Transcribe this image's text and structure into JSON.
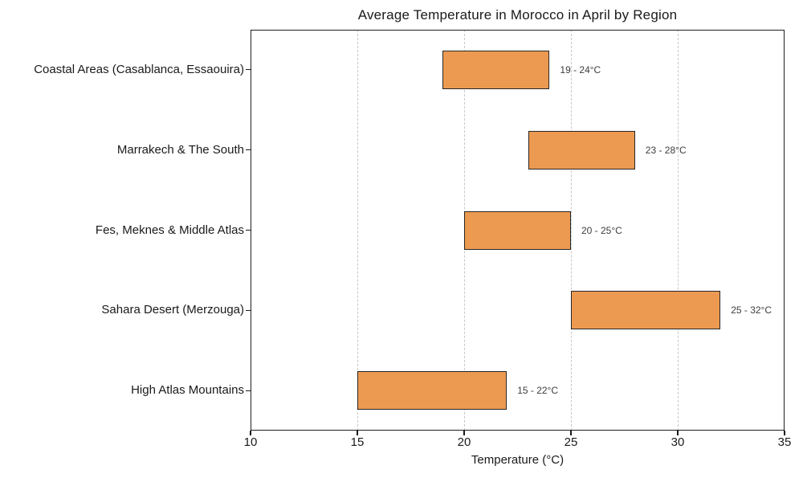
{
  "chart_data": {
    "type": "bar",
    "orientation": "horizontal",
    "title": "Average Temperature in Morocco in April by Region",
    "xlabel": "Temperature (°C)",
    "ylabel": "",
    "xlim": [
      10,
      35
    ],
    "xticks": [
      10,
      15,
      20,
      25,
      30,
      35
    ],
    "grid": "vertical-dashed",
    "legend": "none",
    "categories": [
      "Coastal Areas (Casablanca, Essaouira)",
      "Marrakech & The South",
      "Fes, Meknes & Middle Atlas",
      "Sahara Desert (Merzouga)",
      "High Atlas Mountains"
    ],
    "series": [
      {
        "name": "temperature-range-min",
        "values": [
          19,
          23,
          20,
          25,
          15
        ]
      },
      {
        "name": "temperature-range-max",
        "values": [
          24,
          28,
          25,
          32,
          22
        ]
      }
    ],
    "annotations": [
      "19 - 24°C",
      "23 - 28°C",
      "20 - 25°C",
      "25 - 32°C",
      "15 - 22°C"
    ],
    "colors": {
      "bar_fill": "#EC9A52",
      "bar_edge": "#262626",
      "grid": "#C8C8C8",
      "text": "#1A1A1A",
      "annotation_text": "#3D3D3D",
      "background": "#FFFFFF"
    }
  }
}
